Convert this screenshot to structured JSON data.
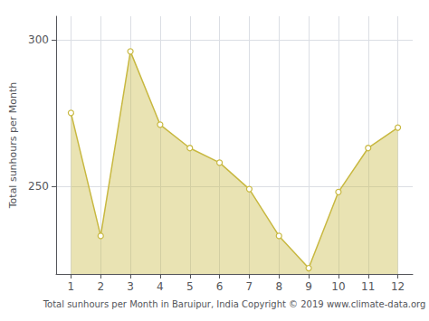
{
  "chart_data": {
    "type": "area",
    "xlabel": "Total sunhours per Month in Baruipur, India Copyright © 2019 www.climate-data.org",
    "ylabel": "Total sunhours per Month",
    "x": [
      1,
      2,
      3,
      4,
      5,
      6,
      7,
      8,
      9,
      10,
      11,
      12
    ],
    "values": [
      275,
      233,
      296,
      271,
      263,
      258,
      249,
      233,
      222,
      248,
      263,
      270
    ],
    "color": "#c8b840",
    "marker": "circle",
    "xlim": [
      0.5,
      12.5
    ],
    "xticks": [
      1,
      2,
      3,
      4,
      5,
      6,
      7,
      8,
      9,
      10,
      11,
      12
    ],
    "ylim": [
      220,
      308
    ],
    "yticks": [
      250,
      300
    ],
    "grid": true
  }
}
